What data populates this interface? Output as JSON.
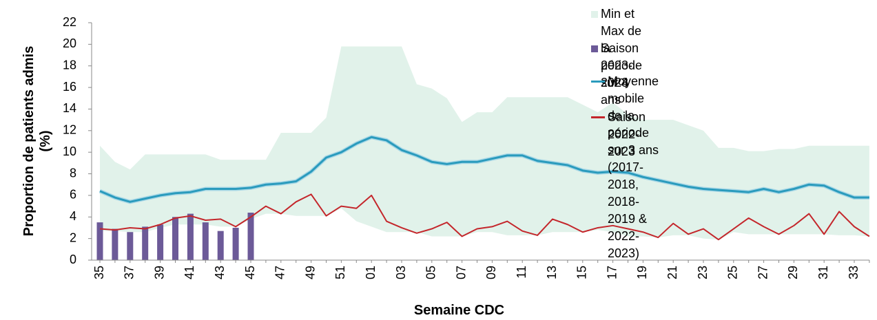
{
  "chart_data": {
    "type": "combo",
    "y_label": "Proportion de patients admis\n(%)",
    "x_label": "Semaine CDC",
    "categories": [
      "35",
      null,
      "37",
      null,
      "39",
      null,
      "41",
      null,
      "43",
      null,
      "45",
      null,
      "47",
      null,
      "49",
      null,
      "51",
      null,
      "01",
      null,
      "03",
      null,
      "05",
      null,
      "07",
      null,
      "09",
      null,
      "11",
      null,
      "13",
      null,
      "15",
      null,
      "17",
      null,
      "19",
      null,
      "21",
      null,
      "23",
      null,
      "25",
      null,
      "27",
      null,
      "29",
      null,
      "31",
      null,
      "33",
      null
    ],
    "ylim": [
      0,
      22
    ],
    "yticks": [
      0,
      2,
      4,
      6,
      8,
      10,
      12,
      14,
      16,
      18,
      20,
      22
    ],
    "series": [
      {
        "name": "Min et Max de la période sur 3 ans",
        "type": "band",
        "color": "#e1f2ea",
        "low": [
          2.7,
          2.7,
          2.6,
          2.6,
          3.0,
          3.3,
          3.3,
          3.3,
          3.1,
          3.1,
          3.8,
          4.3,
          4.3,
          4.1,
          4.1,
          4.1,
          4.8,
          3.6,
          3.1,
          2.6,
          2.6,
          2.6,
          2.2,
          2.2,
          2.2,
          2.6,
          2.6,
          2.3,
          2.3,
          2.3,
          2.6,
          2.6,
          2.6,
          2.8,
          2.6,
          2.2,
          2.2,
          2.1,
          2.3,
          2.3,
          2.0,
          1.9,
          2.6,
          2.4,
          2.4,
          2.4,
          2.4,
          2.4,
          2.4,
          2.3,
          2.3,
          2.2
        ],
        "high": [
          10.6,
          9.1,
          8.4,
          9.8,
          9.8,
          9.8,
          9.8,
          9.8,
          9.3,
          9.3,
          9.3,
          9.3,
          11.8,
          11.8,
          11.8,
          13.2,
          19.8,
          19.8,
          19.8,
          19.8,
          19.8,
          16.3,
          15.9,
          15.0,
          12.8,
          13.7,
          13.7,
          15.1,
          15.1,
          15.1,
          15.1,
          15.1,
          14.4,
          13.7,
          14.6,
          13.5,
          13.0,
          13.0,
          13.0,
          12.5,
          12.0,
          10.4,
          10.4,
          10.1,
          10.1,
          10.3,
          10.3,
          10.6,
          10.6,
          10.6,
          10.6,
          10.6
        ]
      },
      {
        "name": "Saison 2023-2024",
        "type": "bar",
        "color": "#6c5a98",
        "values": [
          3.5,
          2.9,
          2.6,
          3.1,
          3.3,
          4.0,
          4.3,
          3.5,
          2.7,
          3.0,
          4.4,
          null,
          null,
          null,
          null,
          null,
          null,
          null,
          null,
          null,
          null,
          null,
          null,
          null,
          null,
          null,
          null,
          null,
          null,
          null,
          null,
          null,
          null,
          null,
          null,
          null,
          null,
          null,
          null,
          null,
          null,
          null,
          null,
          null,
          null,
          null,
          null,
          null,
          null,
          null,
          null,
          null
        ]
      },
      {
        "name": "Moyenne mobile de la période sur 3 ans\n(2017-2018, 2018-2019 & 2022-2023)",
        "type": "line",
        "color": "#2a9bbd",
        "values": [
          6.4,
          5.8,
          5.4,
          5.7,
          6.0,
          6.2,
          6.3,
          6.6,
          6.6,
          6.6,
          6.7,
          7.0,
          7.1,
          7.3,
          8.2,
          9.5,
          10.0,
          10.8,
          11.4,
          11.1,
          10.2,
          9.7,
          9.1,
          8.9,
          9.1,
          9.1,
          9.4,
          9.7,
          9.7,
          9.2,
          9.0,
          8.8,
          8.3,
          8.1,
          8.2,
          8.1,
          7.7,
          7.4,
          7.1,
          6.8,
          6.6,
          6.5,
          6.4,
          6.3,
          6.6,
          6.3,
          6.6,
          7.0,
          6.9,
          6.3,
          5.8,
          5.8
        ]
      },
      {
        "name": "Saison 2022-2023",
        "type": "line",
        "color": "#c4262b",
        "values": [
          2.9,
          2.8,
          3.0,
          2.9,
          3.3,
          3.9,
          4.1,
          3.7,
          3.8,
          3.1,
          4.0,
          5.0,
          4.3,
          5.4,
          6.1,
          4.1,
          5.0,
          4.8,
          6.0,
          3.6,
          3.0,
          2.5,
          2.9,
          3.5,
          2.2,
          2.9,
          3.1,
          3.6,
          2.7,
          2.3,
          3.8,
          3.3,
          2.6,
          3.0,
          3.2,
          2.9,
          2.6,
          2.1,
          3.4,
          2.4,
          2.9,
          1.9,
          2.9,
          3.9,
          3.1,
          2.4,
          3.2,
          4.3,
          2.4,
          4.5,
          3.1,
          2.2
        ]
      }
    ]
  }
}
